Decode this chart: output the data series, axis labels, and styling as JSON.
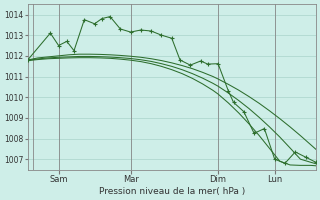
{
  "bg_color": "#ceeee8",
  "grid_color": "#a0ccc4",
  "line_color": "#2d6e2d",
  "xlabel": "Pression niveau de la mer( hPa )",
  "ylim": [
    1006.5,
    1014.5
  ],
  "yticks": [
    1007,
    1008,
    1009,
    1010,
    1011,
    1012,
    1013,
    1014
  ],
  "xlim": [
    0,
    280
  ],
  "xtick_positions": [
    30,
    100,
    185,
    240
  ],
  "xtick_labels": [
    "Sam",
    "Mar",
    "Dim",
    "Lun"
  ],
  "vline_positions": [
    5,
    30,
    100,
    185,
    240
  ],
  "line1_x": [
    0,
    10,
    20,
    30,
    40,
    50,
    60,
    70,
    80,
    90,
    100,
    110,
    120,
    130,
    140,
    150,
    160,
    170,
    180,
    185,
    195,
    205,
    215,
    225,
    235,
    245,
    255,
    265,
    275,
    280
  ],
  "line1_y": [
    1011.8,
    1011.9,
    1011.95,
    1012.0,
    1012.05,
    1012.08,
    1012.08,
    1012.07,
    1012.05,
    1012.02,
    1011.98,
    1011.93,
    1011.86,
    1011.77,
    1011.66,
    1011.53,
    1011.38,
    1011.2,
    1011.0,
    1010.88,
    1010.62,
    1010.34,
    1010.03,
    1009.7,
    1009.34,
    1008.96,
    1008.56,
    1008.14,
    1007.7,
    1007.48
  ],
  "line2_x": [
    0,
    10,
    20,
    30,
    40,
    50,
    60,
    70,
    80,
    90,
    100,
    110,
    120,
    130,
    140,
    150,
    160,
    170,
    180,
    185,
    195,
    205,
    215,
    225,
    235,
    245,
    255,
    265,
    275,
    280
  ],
  "line2_y": [
    1011.78,
    1011.85,
    1011.9,
    1011.93,
    1011.95,
    1011.97,
    1011.97,
    1011.96,
    1011.94,
    1011.91,
    1011.87,
    1011.81,
    1011.73,
    1011.62,
    1011.49,
    1011.33,
    1011.14,
    1010.92,
    1010.67,
    1010.53,
    1010.2,
    1009.84,
    1009.45,
    1009.02,
    1008.56,
    1008.07,
    1007.54,
    1007.0,
    1006.85,
    1006.78
  ],
  "line3_x": [
    0,
    10,
    20,
    30,
    40,
    50,
    60,
    70,
    80,
    90,
    100,
    110,
    120,
    130,
    140,
    150,
    160,
    170,
    180,
    185,
    195,
    205,
    215,
    225,
    235,
    245,
    255,
    265,
    275,
    280
  ],
  "line3_y": [
    1011.77,
    1011.82,
    1011.86,
    1011.88,
    1011.9,
    1011.91,
    1011.91,
    1011.9,
    1011.88,
    1011.84,
    1011.79,
    1011.72,
    1011.62,
    1011.49,
    1011.33,
    1011.14,
    1010.91,
    1010.64,
    1010.33,
    1010.15,
    1009.72,
    1009.24,
    1008.71,
    1008.14,
    1007.52,
    1006.9,
    1006.72,
    1006.7,
    1006.7,
    1006.68
  ],
  "main_x": [
    0,
    22,
    30,
    38,
    45,
    55,
    65,
    72,
    80,
    90,
    100,
    110,
    120,
    130,
    140,
    148,
    158,
    168,
    175,
    185,
    195,
    200,
    210,
    220,
    230,
    240,
    250,
    260,
    270,
    280
  ],
  "main_y": [
    1011.8,
    1013.1,
    1012.5,
    1012.7,
    1012.25,
    1013.75,
    1013.55,
    1013.8,
    1013.9,
    1013.3,
    1013.15,
    1013.25,
    1013.2,
    1013.0,
    1012.85,
    1011.8,
    1011.55,
    1011.75,
    1011.6,
    1011.62,
    1010.3,
    1009.75,
    1009.3,
    1008.25,
    1008.48,
    1007.0,
    1006.8,
    1007.35,
    1007.1,
    1006.85
  ]
}
